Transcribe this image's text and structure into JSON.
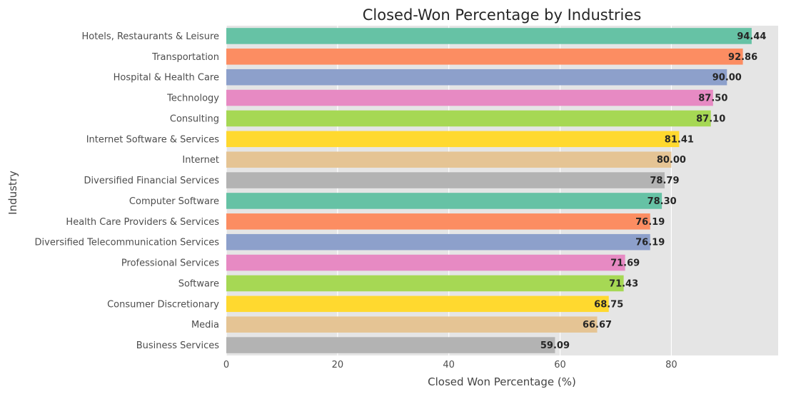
{
  "chart_data": {
    "type": "bar",
    "orientation": "horizontal",
    "title": "Closed-Won Percentage by Industries",
    "xlabel": "Closed Won Percentage (%)",
    "ylabel": "Industry",
    "xlim": [
      0,
      99.2
    ],
    "xticks": [
      0,
      20,
      40,
      60,
      80
    ],
    "grid": true,
    "categories": [
      "Hotels, Restaurants & Leisure",
      "Transportation",
      "Hospital & Health Care",
      "Technology",
      "Consulting",
      "Internet Software & Services",
      "Internet",
      "Diversified Financial Services",
      "Computer Software",
      "Health Care Providers & Services",
      "Diversified Telecommunication Services",
      "Professional Services",
      "Software",
      "Consumer Discretionary",
      "Media",
      "Business Services"
    ],
    "values": [
      94.44,
      92.86,
      90.0,
      87.5,
      87.1,
      81.41,
      80.0,
      78.79,
      78.3,
      76.19,
      76.19,
      71.69,
      71.43,
      68.75,
      66.67,
      59.09
    ],
    "value_labels": [
      "94.44",
      "92.86",
      "90.00",
      "87.50",
      "87.10",
      "81.41",
      "80.00",
      "78.79",
      "78.30",
      "76.19",
      "76.19",
      "71.69",
      "71.43",
      "68.75",
      "66.67",
      "59.09"
    ],
    "colors": [
      "#66c2a5",
      "#fc8d62",
      "#8da0cb",
      "#e78ac3",
      "#a6d854",
      "#ffd92f",
      "#e5c494",
      "#b3b3b3"
    ],
    "background": "#e5e5e5"
  }
}
